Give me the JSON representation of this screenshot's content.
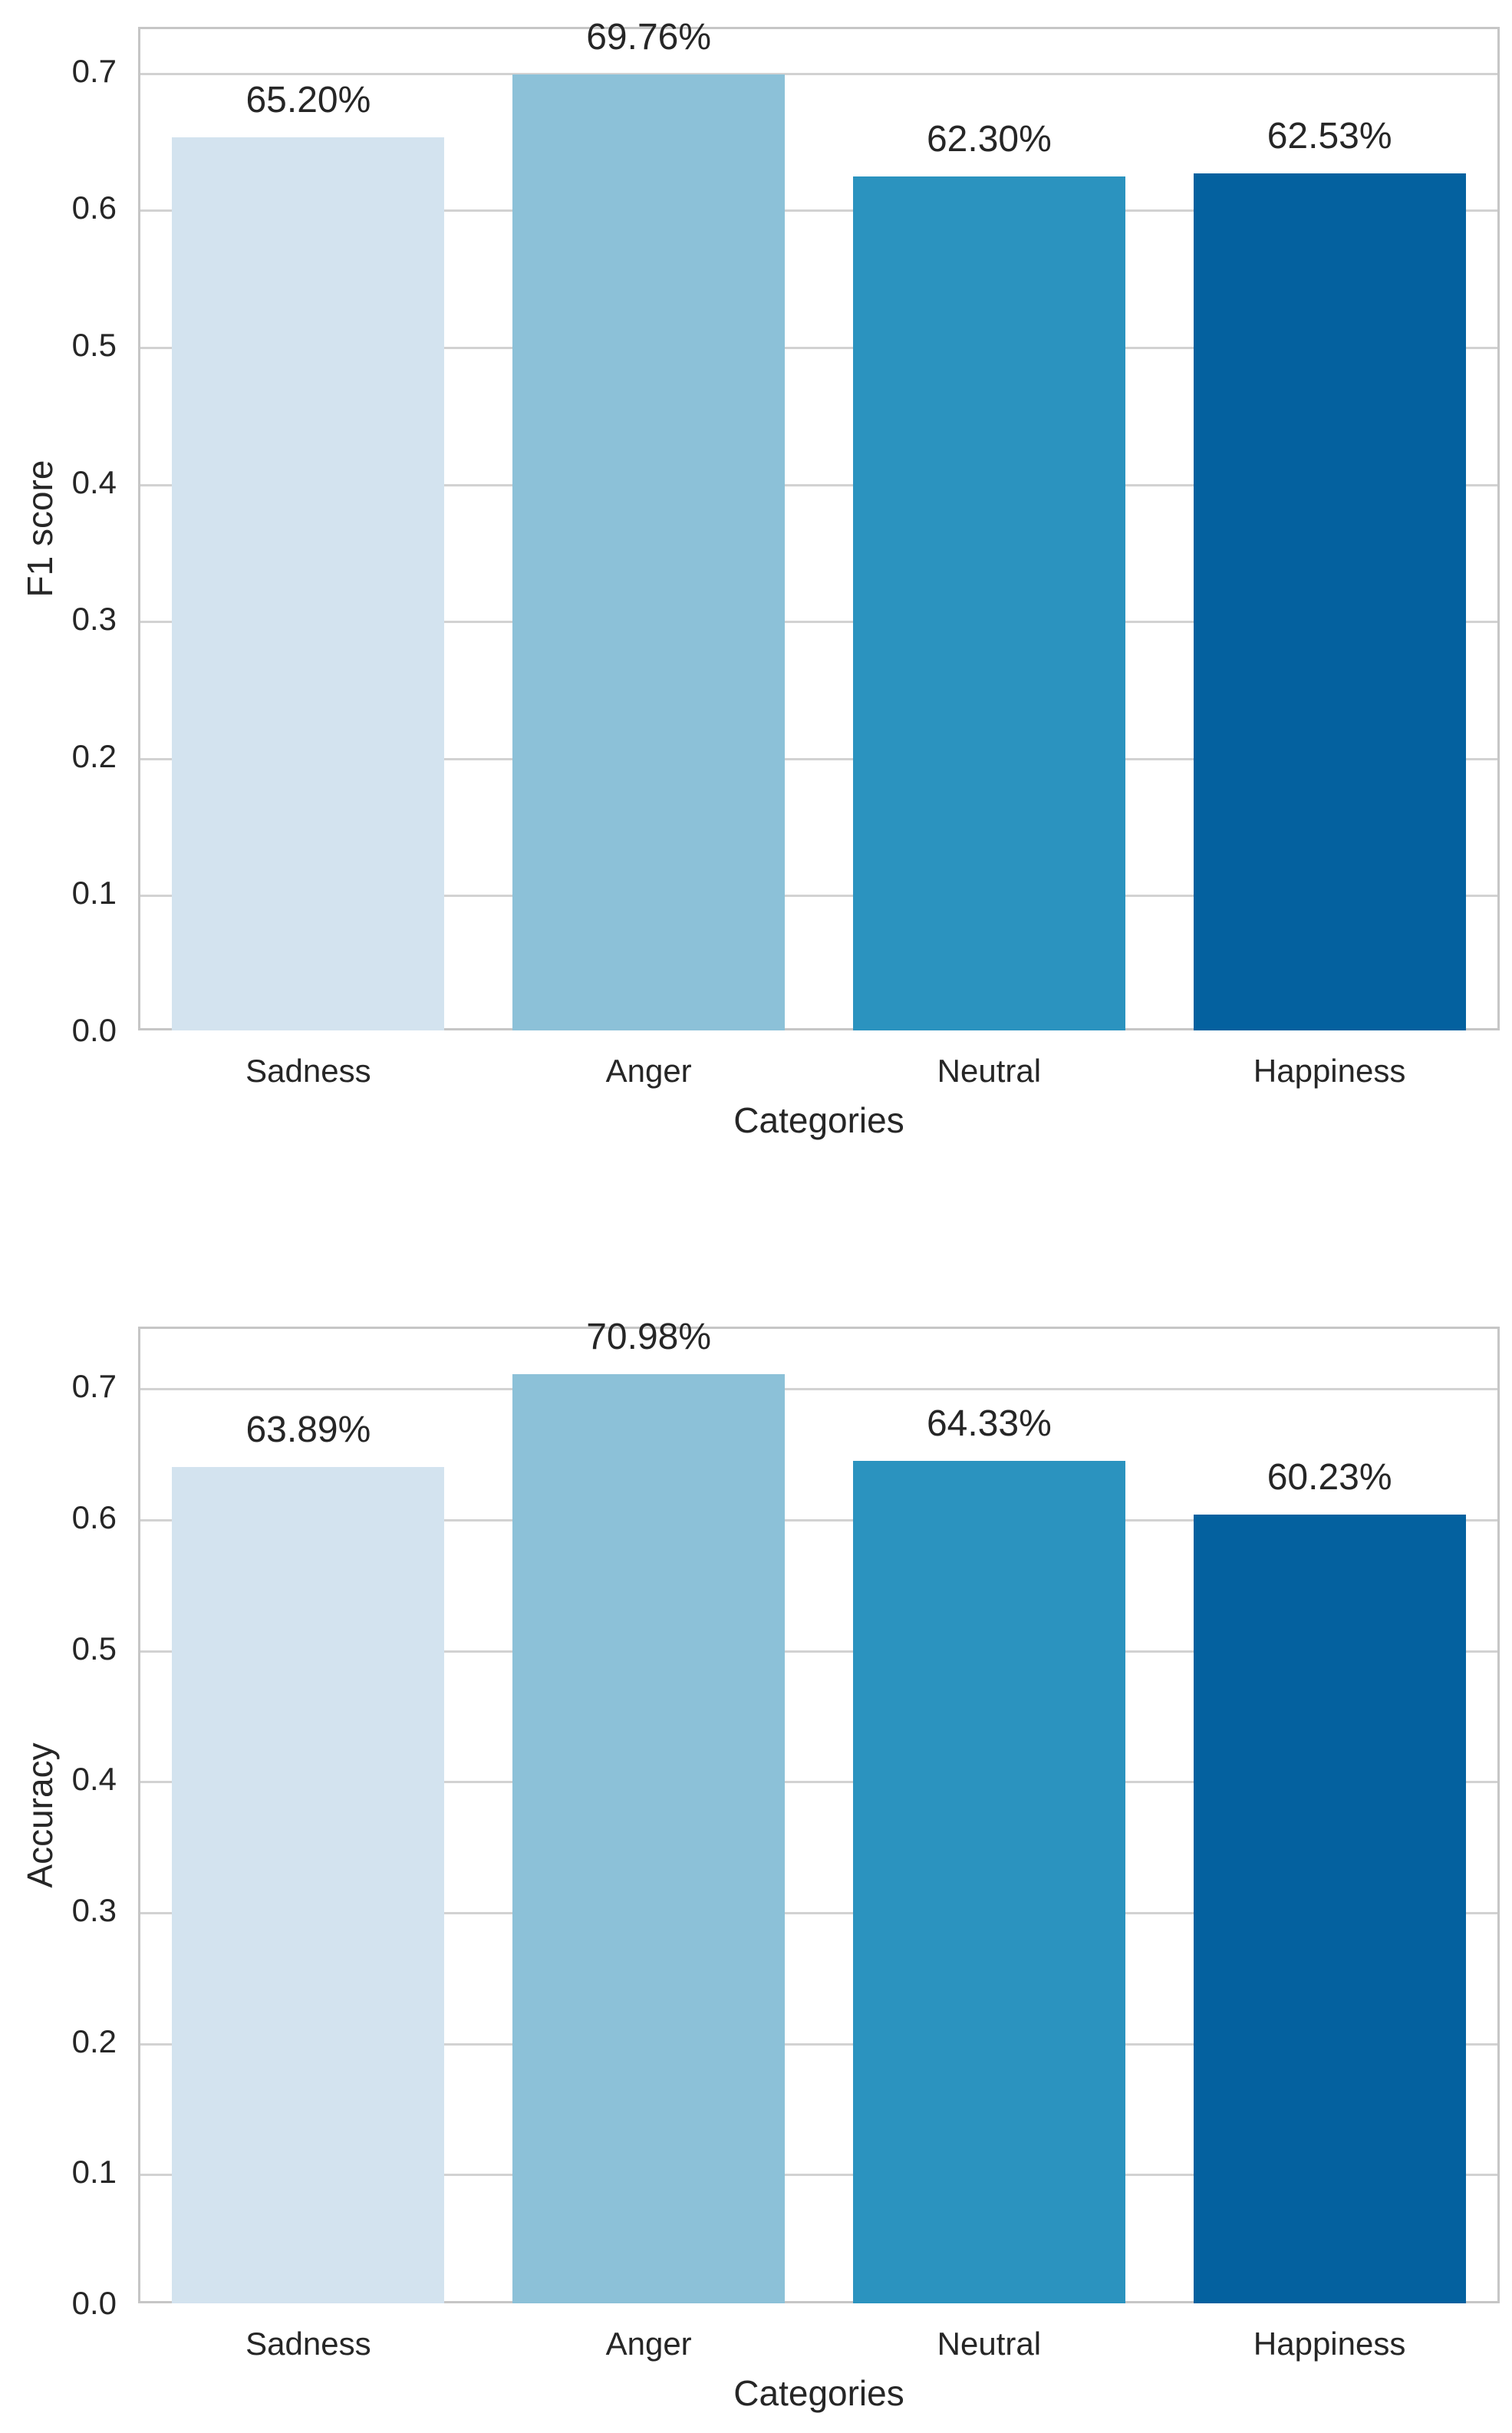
{
  "page": {
    "background": "#ffffff",
    "text_color": "#262626",
    "grid_color": "#d2d2d2",
    "spine_color": "#c6c6c6"
  },
  "palette": {
    "bar_colors": [
      "#d3e3ef",
      "#8cc1d8",
      "#2b93bf",
      "#04619f"
    ]
  },
  "chart_data": [
    {
      "type": "bar",
      "title": "",
      "xlabel": "Categories",
      "ylabel": "F1 score",
      "categories": [
        "Sadness",
        "Anger",
        "Neutral",
        "Happiness"
      ],
      "values": [
        0.652,
        0.6976,
        0.623,
        0.6253
      ],
      "value_labels": [
        "65.20%",
        "69.76%",
        "62.30%",
        "62.53%"
      ],
      "yticks": [
        0.0,
        0.1,
        0.2,
        0.3,
        0.4,
        0.5,
        0.6,
        0.7
      ],
      "ytick_labels": [
        "0.0",
        "0.1",
        "0.2",
        "0.3",
        "0.4",
        "0.5",
        "0.6",
        "0.7"
      ],
      "ylim": [
        0,
        0.7324
      ],
      "grid": true,
      "legend": null
    },
    {
      "type": "bar",
      "title": "",
      "xlabel": "Categories",
      "ylabel": "Accuracy",
      "categories": [
        "Sadness",
        "Anger",
        "Neutral",
        "Happiness"
      ],
      "values": [
        0.6389,
        0.7098,
        0.6433,
        0.6023
      ],
      "value_labels": [
        "63.89%",
        "70.98%",
        "64.33%",
        "60.23%"
      ],
      "yticks": [
        0.0,
        0.1,
        0.2,
        0.3,
        0.4,
        0.5,
        0.6,
        0.7
      ],
      "ytick_labels": [
        "0.0",
        "0.1",
        "0.2",
        "0.3",
        "0.4",
        "0.5",
        "0.6",
        "0.7"
      ],
      "ylim": [
        0,
        0.746
      ],
      "grid": true,
      "legend": null
    }
  ]
}
